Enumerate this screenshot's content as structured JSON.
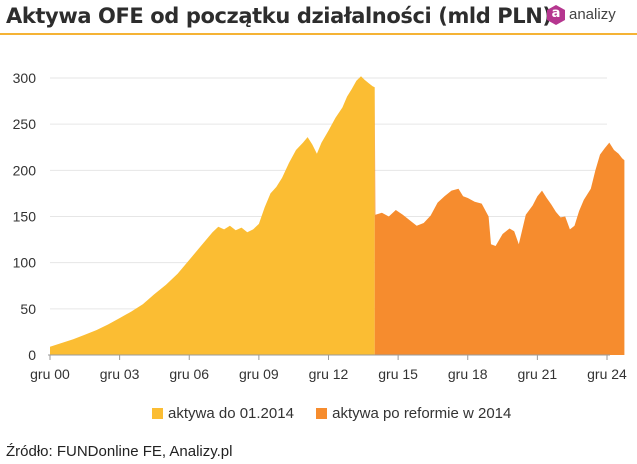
{
  "title": "Aktywa OFE od początku działalności (mld PLN)",
  "logo": {
    "icon": "analizy-hexagon-icon",
    "mark": "a",
    "text": "analizy",
    "color": "#b5368f"
  },
  "source": "Źródło: FUNDonline FE, Analizy.pl",
  "chart_data": {
    "type": "area",
    "title": "Aktywa OFE od początku działalności (mld PLN)",
    "xlabel": "",
    "ylabel": "",
    "x_unit": "year",
    "xlim": [
      2000.0,
      2024.0
    ],
    "ylim": [
      0,
      300
    ],
    "y_ticks": [
      0,
      50,
      100,
      150,
      200,
      250,
      300
    ],
    "x_ticks": [
      {
        "x": 2000,
        "label": "gru 00"
      },
      {
        "x": 2003,
        "label": "gru 03"
      },
      {
        "x": 2006,
        "label": "gru 06"
      },
      {
        "x": 2009,
        "label": "gru 09"
      },
      {
        "x": 2012,
        "label": "gru 12"
      },
      {
        "x": 2015,
        "label": "gru 15"
      },
      {
        "x": 2018,
        "label": "gru 18"
      },
      {
        "x": 2021,
        "label": "gru 21"
      },
      {
        "x": 2024,
        "label": "gru 24"
      }
    ],
    "grid": "horizontal",
    "legend_position": "bottom",
    "series": [
      {
        "name": "aktywa do 01.2014",
        "color": "#fbbd33",
        "points": [
          [
            2000.0,
            9
          ],
          [
            2000.5,
            13
          ],
          [
            2001.0,
            17
          ],
          [
            2001.5,
            22
          ],
          [
            2002.0,
            27
          ],
          [
            2002.5,
            33
          ],
          [
            2003.0,
            40
          ],
          [
            2003.5,
            47
          ],
          [
            2004.0,
            55
          ],
          [
            2004.5,
            66
          ],
          [
            2005.0,
            76
          ],
          [
            2005.5,
            88
          ],
          [
            2006.0,
            103
          ],
          [
            2006.5,
            118
          ],
          [
            2007.0,
            133
          ],
          [
            2007.25,
            139
          ],
          [
            2007.5,
            136
          ],
          [
            2007.75,
            140
          ],
          [
            2008.0,
            135
          ],
          [
            2008.25,
            138
          ],
          [
            2008.5,
            133
          ],
          [
            2008.75,
            136
          ],
          [
            2009.0,
            142
          ],
          [
            2009.25,
            160
          ],
          [
            2009.5,
            175
          ],
          [
            2009.75,
            182
          ],
          [
            2010.0,
            192
          ],
          [
            2010.3,
            208
          ],
          [
            2010.6,
            222
          ],
          [
            2010.9,
            230
          ],
          [
            2011.1,
            236
          ],
          [
            2011.3,
            228
          ],
          [
            2011.5,
            218
          ],
          [
            2011.7,
            230
          ],
          [
            2012.0,
            243
          ],
          [
            2012.3,
            257
          ],
          [
            2012.6,
            268
          ],
          [
            2012.8,
            280
          ],
          [
            2013.0,
            288
          ],
          [
            2013.2,
            297
          ],
          [
            2013.4,
            302
          ],
          [
            2013.55,
            298
          ],
          [
            2013.75,
            294
          ],
          [
            2013.9,
            291
          ],
          [
            2013.99,
            290
          ]
        ]
      },
      {
        "name": "aktywa po reformie w 2014",
        "color": "#f68c2e",
        "points": [
          [
            2013.99,
            290
          ],
          [
            2014.02,
            152
          ],
          [
            2014.3,
            154
          ],
          [
            2014.6,
            150
          ],
          [
            2014.9,
            157
          ],
          [
            2015.2,
            152
          ],
          [
            2015.5,
            146
          ],
          [
            2015.8,
            140
          ],
          [
            2016.1,
            143
          ],
          [
            2016.4,
            151
          ],
          [
            2016.7,
            165
          ],
          [
            2017.0,
            172
          ],
          [
            2017.3,
            178
          ],
          [
            2017.6,
            180
          ],
          [
            2017.8,
            172
          ],
          [
            2018.0,
            170
          ],
          [
            2018.3,
            166
          ],
          [
            2018.6,
            164
          ],
          [
            2018.9,
            150
          ],
          [
            2019.0,
            120
          ],
          [
            2019.2,
            118
          ],
          [
            2019.5,
            131
          ],
          [
            2019.8,
            137
          ],
          [
            2020.0,
            134
          ],
          [
            2020.2,
            120
          ],
          [
            2020.5,
            152
          ],
          [
            2020.8,
            162
          ],
          [
            2021.0,
            172
          ],
          [
            2021.2,
            178
          ],
          [
            2021.4,
            170
          ],
          [
            2021.6,
            163
          ],
          [
            2021.8,
            155
          ],
          [
            2022.0,
            149
          ],
          [
            2022.2,
            150
          ],
          [
            2022.4,
            136
          ],
          [
            2022.6,
            140
          ],
          [
            2022.8,
            156
          ],
          [
            2023.0,
            168
          ],
          [
            2023.3,
            180
          ],
          [
            2023.5,
            200
          ],
          [
            2023.7,
            217
          ],
          [
            2023.9,
            224
          ],
          [
            2024.1,
            230
          ],
          [
            2024.3,
            222
          ],
          [
            2024.5,
            218
          ],
          [
            2024.65,
            213
          ],
          [
            2024.75,
            211
          ]
        ]
      }
    ]
  }
}
